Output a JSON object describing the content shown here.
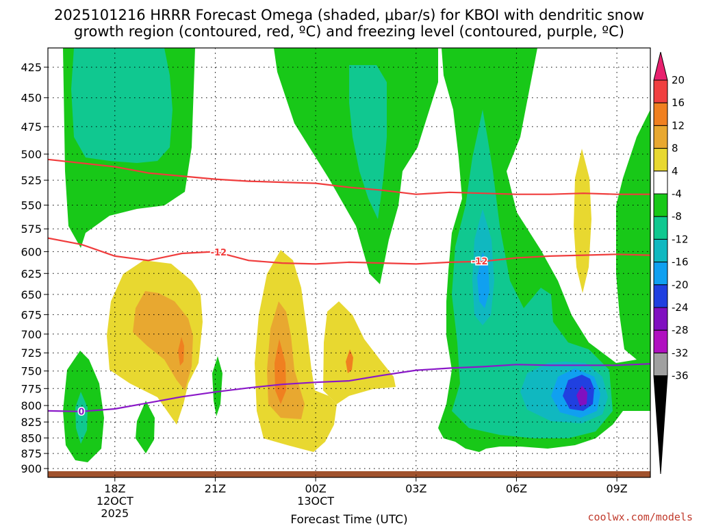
{
  "chart_data": {
    "type": "contour",
    "title_line1": "2025101216 HRRR Forecast Omega (shaded, μbar/s) for KBOI with dendritic snow",
    "title_line2": "growth region (contoured, red, ºC) and freezing level (contoured, purple, ºC)",
    "xlabel": "Forecast Time (UTC)",
    "credit": "coolwx.com/models",
    "x_ticks": [
      {
        "hour": 18,
        "lines": [
          "18Z",
          "12OCT",
          "2025"
        ]
      },
      {
        "hour": 21,
        "lines": [
          "21Z"
        ]
      },
      {
        "hour": 24,
        "lines": [
          "00Z",
          "13OCT"
        ]
      },
      {
        "hour": 27,
        "lines": [
          "03Z"
        ]
      },
      {
        "hour": 30,
        "lines": [
          "06Z"
        ]
      },
      {
        "hour": 33,
        "lines": [
          "09Z"
        ]
      }
    ],
    "xlim": [
      16,
      34
    ],
    "y_ticks": [
      425,
      450,
      475,
      500,
      525,
      550,
      575,
      600,
      625,
      650,
      675,
      700,
      725,
      750,
      775,
      800,
      825,
      850,
      875,
      900
    ],
    "ylim": [
      410,
      915
    ],
    "y_scale": "log",
    "grid": true,
    "colorbar": {
      "levels": [
        "20",
        "16",
        "12",
        "8",
        "4",
        "-4",
        "-8",
        "-12",
        "-16",
        "-20",
        "-24",
        "-28",
        "-32",
        "-36"
      ],
      "colors": [
        "#e8206e",
        "#f04040",
        "#f08020",
        "#e8a830",
        "#e8d830",
        "#ffffff",
        "#18c818",
        "#10c890",
        "#10b8c0",
        "#10a0f0",
        "#2040e0",
        "#8010c0",
        "#b010c0",
        "#a0a0a0",
        "#000000"
      ]
    },
    "contours": {
      "minus12_label": "-12",
      "zero_label": "0",
      "dgz_upper": {
        "x": [
          16,
          18,
          19,
          20,
          21,
          22,
          23,
          24,
          25,
          26,
          27,
          28,
          29,
          30,
          31,
          32,
          33,
          34
        ],
        "y": [
          505,
          512,
          518,
          521,
          524,
          526,
          527,
          528,
          532,
          535,
          539,
          537,
          538,
          539,
          539,
          538,
          539,
          539
        ]
      },
      "dgz_lower": {
        "x": [
          16,
          17,
          18,
          19,
          20,
          21,
          22,
          23,
          24,
          25,
          26,
          27,
          28,
          29,
          30,
          31,
          32,
          33,
          34
        ],
        "y": [
          585,
          592,
          605,
          610,
          602,
          600,
          610,
          613,
          614,
          612,
          613,
          614,
          612,
          611,
          607,
          605,
          604,
          603,
          604
        ]
      },
      "freezing": {
        "x": [
          16,
          17,
          18,
          19,
          20,
          21,
          22,
          23,
          24,
          25,
          26,
          27,
          28,
          29,
          30,
          31,
          32,
          33,
          34
        ],
        "y": [
          808,
          809,
          805,
          796,
          787,
          780,
          774,
          769,
          766,
          764,
          756,
          749,
          746,
          744,
          741,
          742,
          742,
          742,
          740
        ]
      }
    }
  }
}
